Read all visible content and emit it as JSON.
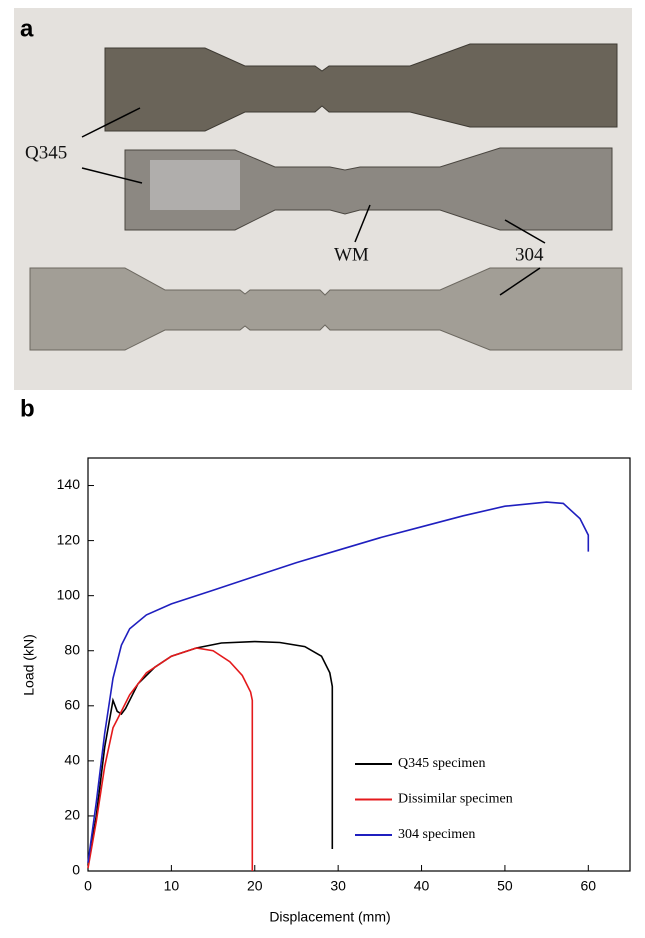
{
  "panel_a": {
    "label": "a",
    "annotations": [
      "Q345",
      "WM",
      "304"
    ]
  },
  "panel_b": {
    "label": "b"
  },
  "chart_data": {
    "type": "line",
    "xlabel": "Displacement (mm)",
    "ylabel": "Load (kN)",
    "xlim": [
      0,
      65
    ],
    "ylim": [
      0,
      150
    ],
    "xticks": [
      0,
      10,
      20,
      30,
      40,
      50,
      60
    ],
    "yticks": [
      0,
      20,
      40,
      60,
      80,
      100,
      120,
      140
    ],
    "legend": "lower right",
    "series": [
      {
        "name": "Q345 specimen",
        "color": "#000000",
        "x": [
          0,
          1,
          2,
          3,
          3.5,
          4,
          4.5,
          6,
          8,
          10,
          13,
          16,
          20,
          23,
          26,
          28,
          29,
          29.3,
          29.3
        ],
        "y": [
          2,
          20,
          45,
          62,
          58,
          57,
          59,
          68,
          74,
          78,
          81,
          82.8,
          83.3,
          83,
          81.5,
          78,
          72,
          67,
          8
        ]
      },
      {
        "name": "Dissimilar specimen",
        "color": "#e41a1c",
        "x": [
          0,
          1,
          2,
          3,
          3.5,
          5,
          7,
          10,
          13,
          15,
          17,
          18.5,
          19.5,
          19.7,
          19.7
        ],
        "y": [
          1,
          18,
          38,
          52,
          55,
          64,
          72,
          78,
          81,
          80,
          76,
          71,
          65,
          62,
          0
        ]
      },
      {
        "name": "304 specimen",
        "color": "#1f1fbf",
        "x": [
          0,
          1,
          2,
          3,
          4,
          5,
          7,
          10,
          15,
          20,
          25,
          30,
          35,
          40,
          45,
          50,
          55,
          57,
          59,
          60,
          60
        ],
        "y": [
          3,
          25,
          50,
          70,
          82,
          88,
          93,
          97,
          102,
          107,
          112,
          116.5,
          121,
          125,
          129,
          132.5,
          134,
          133.5,
          128,
          122,
          116
        ]
      }
    ]
  }
}
